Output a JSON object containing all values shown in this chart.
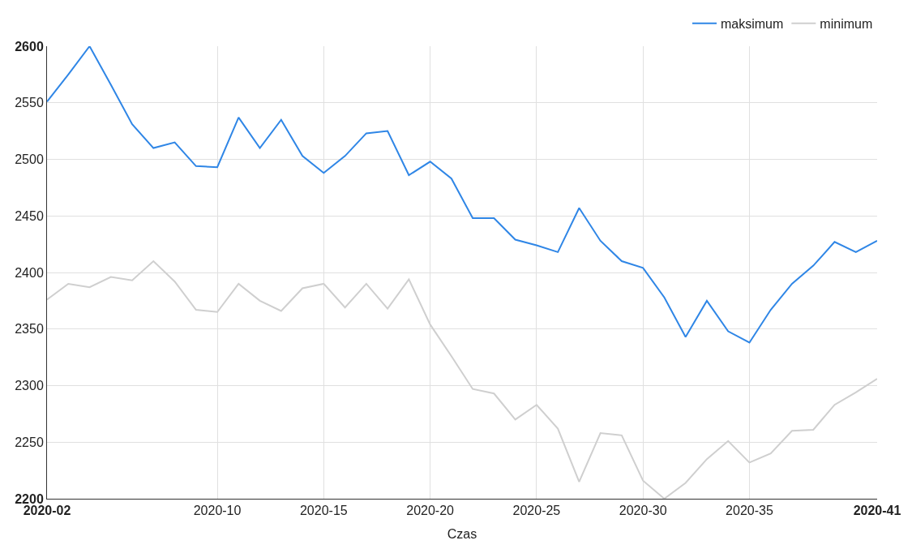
{
  "chart_data": {
    "type": "line",
    "xlabel": "Czas",
    "categories": [
      "2020-02",
      null,
      null,
      null,
      null,
      null,
      null,
      null,
      "2020-10",
      null,
      null,
      null,
      null,
      "2020-15",
      null,
      null,
      null,
      null,
      "2020-20",
      null,
      null,
      null,
      null,
      "2020-25",
      null,
      null,
      null,
      null,
      "2020-30",
      null,
      null,
      null,
      null,
      "2020-35",
      null,
      null,
      null,
      null,
      null,
      "2020-41"
    ],
    "series": [
      {
        "name": "maksimum",
        "color": "#2f86e6",
        "values": [
          2551,
          2575,
          2600,
          2566,
          2531,
          2510,
          2515,
          2494,
          2493,
          2537,
          2510,
          2535,
          2503,
          2488,
          2503,
          2523,
          2525,
          2486,
          2498,
          2483,
          2448,
          2448,
          2429,
          2424,
          2418,
          2457,
          2428,
          2410,
          2404,
          2378,
          2343,
          2375,
          2348,
          2338,
          2367,
          2390,
          2406,
          2427,
          2418,
          2428
        ]
      },
      {
        "name": "minimum",
        "color": "#cfcfcf",
        "values": [
          2376,
          2390,
          2387,
          2396,
          2393,
          2410,
          2392,
          2367,
          2365,
          2390,
          2375,
          2366,
          2386,
          2390,
          2369,
          2390,
          2368,
          2394,
          2354,
          2326,
          2297,
          2293,
          2270,
          2283,
          2262,
          2215,
          2258,
          2256,
          2216,
          2200,
          2214,
          2235,
          2251,
          2232,
          2240,
          2260,
          2261,
          2283,
          2294,
          2306
        ]
      }
    ],
    "ylim": [
      2200,
      2600
    ],
    "yticks": [
      2200,
      2250,
      2300,
      2350,
      2400,
      2450,
      2500,
      2550,
      2600
    ],
    "grid": true,
    "legend": "top right",
    "marker": "none",
    "line_style": "solid"
  }
}
